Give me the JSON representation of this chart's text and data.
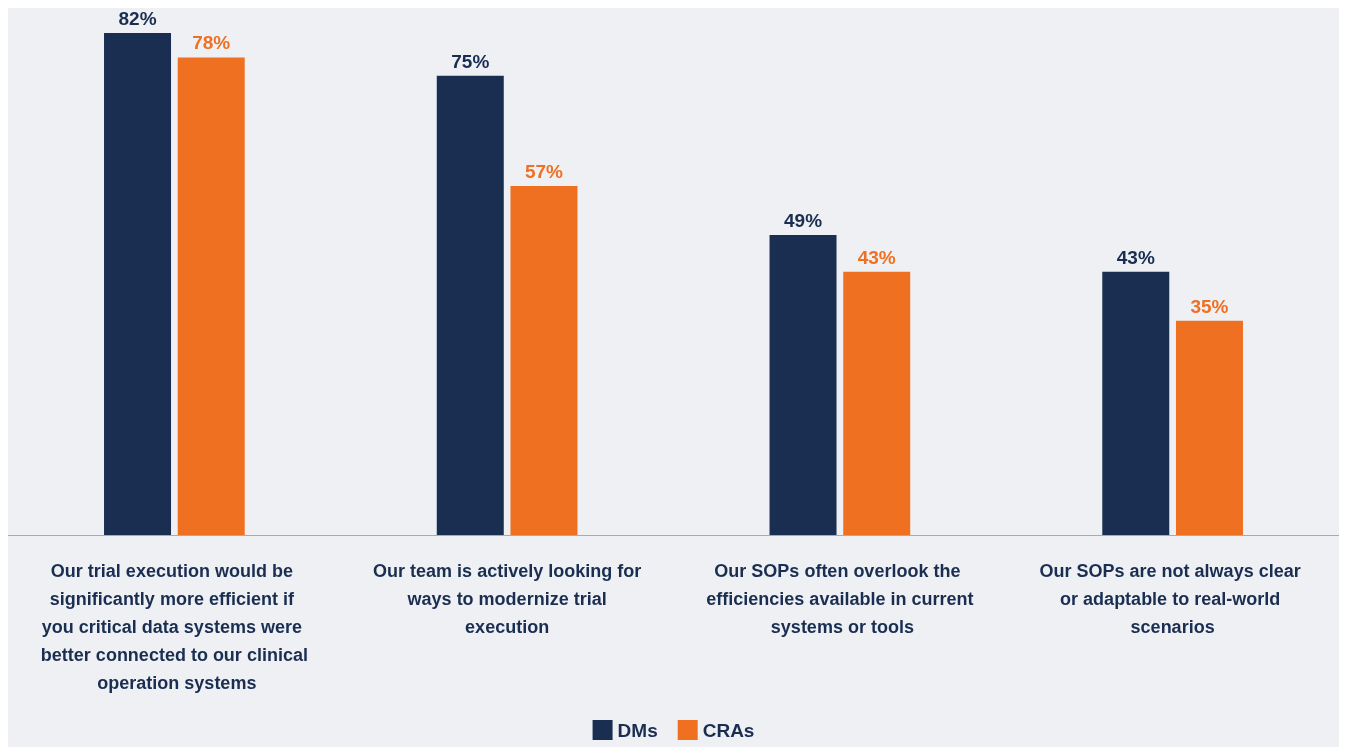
{
  "chart_data": {
    "type": "bar",
    "categories": [
      "Our trial execution would be significantly more efficient if you critical data systems were better connected to our clinical operation systems",
      "Our team is actively looking for ways to modernize trial execution",
      "Our SOPs often overlook the efficiencies available in current systems or tools",
      "Our SOPs are not always clear or adaptable to real-world scenarios"
    ],
    "series": [
      {
        "name": "DMs",
        "color": "#1a2e52",
        "values": [
          82,
          75,
          49,
          43
        ],
        "value_labels": [
          "82%",
          "75%",
          "49%",
          "43%"
        ]
      },
      {
        "name": "CRAs",
        "color": "#f07022",
        "values": [
          78,
          57,
          43,
          35
        ],
        "value_labels": [
          "78%",
          "57%",
          "43%",
          "35%"
        ]
      }
    ],
    "legend": "bottom"
  }
}
